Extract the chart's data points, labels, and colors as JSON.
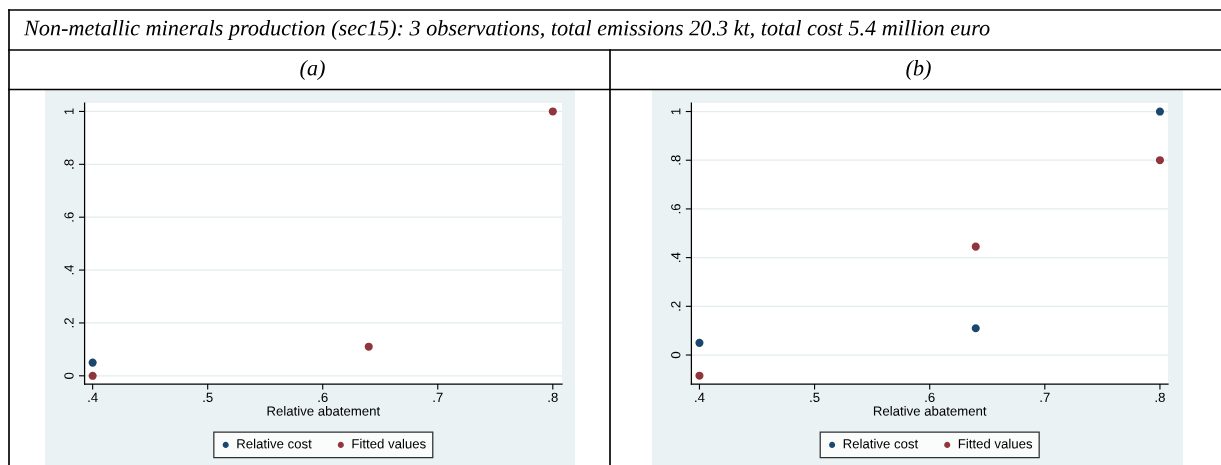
{
  "chart_data": [
    {
      "type": "scatter",
      "title": "(a)",
      "annotations": [
        "Non-metallic minerals production (sec15): 3 observations, total emissions 20.3 kt, total cost 5.4 million euro"
      ],
      "xlabel": "Relative abatement",
      "x": [
        0.4,
        0.64,
        0.8
      ],
      "series": [
        {
          "name": "Relative cost",
          "color": "#1a476f",
          "values": [
            0.05,
            null,
            null
          ]
        },
        {
          "name": "Fitted values",
          "color": "#90353b",
          "values": [
            0,
            0.11,
            1
          ]
        }
      ],
      "xlim": [
        0.393,
        0.808
      ],
      "ylim": [
        -0.031,
        1.032
      ],
      "xticks": [
        {
          "value": 0.4,
          "label": ".4"
        },
        {
          "value": 0.5,
          "label": ".5"
        },
        {
          "value": 0.6,
          "label": ".6"
        },
        {
          "value": 0.7,
          "label": ".7"
        },
        {
          "value": 0.8,
          "label": ".8"
        }
      ],
      "yticks": [
        0,
        {
          "value": 0.2,
          "label": ".2"
        },
        {
          "value": 0.4,
          "label": ".4"
        },
        {
          "value": 0.6,
          "label": ".6"
        },
        {
          "value": 0.8,
          "label": ".8"
        },
        1
      ],
      "grid": "y",
      "legend": "bottom",
      "marker": "circle"
    },
    {
      "type": "scatter",
      "title": "(b)",
      "xlabel": "Relative abatement",
      "x": [
        0.4,
        0.64,
        0.8
      ],
      "series": [
        {
          "name": "Relative cost",
          "color": "#1a476f",
          "values": [
            0.05,
            0.11,
            1
          ]
        },
        {
          "name": "Fitted values",
          "color": "#90353b",
          "values": [
            -0.085,
            0.445,
            0.8
          ]
        }
      ],
      "xlim": [
        0.393,
        0.807
      ],
      "ylim": [
        -0.119,
        1.035
      ],
      "xticks": [
        {
          "value": 0.4,
          "label": ".4"
        },
        {
          "value": 0.5,
          "label": ".5"
        },
        {
          "value": 0.6,
          "label": ".6"
        },
        {
          "value": 0.7,
          "label": ".7"
        },
        {
          "value": 0.8,
          "label": ".8"
        }
      ],
      "yticks": [
        0,
        {
          "value": 0.2,
          "label": ".2"
        },
        {
          "value": 0.4,
          "label": ".4"
        },
        {
          "value": 0.6,
          "label": ".6"
        },
        {
          "value": 0.8,
          "label": ".8"
        },
        1
      ],
      "grid": "y",
      "legend": "bottom",
      "marker": "circle"
    }
  ]
}
